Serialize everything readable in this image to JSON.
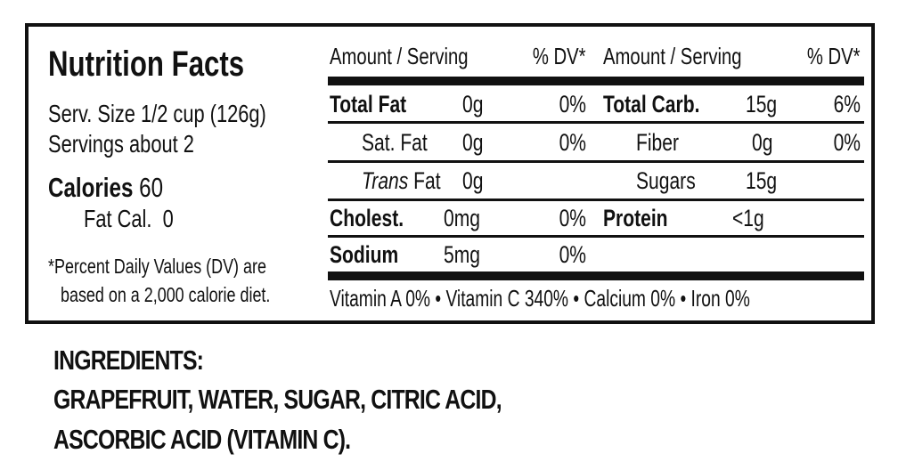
{
  "label": {
    "title": "Nutrition Facts",
    "serving_size": "Serv. Size 1/2 cup (126g)",
    "servings": "Servings about 2",
    "calories_label": "Calories",
    "calories_value": "60",
    "fat_cal_label": "Fat Cal.",
    "fat_cal_value": "0",
    "footnote_line1": "*Percent Daily Values (DV) are",
    "footnote_line2": "based on a 2,000 calorie diet.",
    "header": {
      "amount_left": "Amount / Serving",
      "dv_left": "% DV*",
      "amount_right": "Amount / Serving",
      "dv_right": "% DV*"
    },
    "left_rows": [
      {
        "name": "Total Fat",
        "amount": "0g",
        "dv": "0%"
      },
      {
        "name": "Sat. Fat",
        "amount": "0g",
        "dv": "0%"
      },
      {
        "name_italic": "Trans",
        "name_rest": "Fat",
        "amount": "0g",
        "dv": ""
      },
      {
        "name": "Cholest.",
        "amount": "0mg",
        "dv": "0%"
      },
      {
        "name": "Sodium",
        "amount": "5mg",
        "dv": "0%"
      }
    ],
    "right_rows": [
      {
        "name": "Total Carb.",
        "amount": "15g",
        "dv": "6%"
      },
      {
        "name": "Fiber",
        "amount": "0g",
        "dv": "0%"
      },
      {
        "name": "Sugars",
        "amount": "15g",
        "dv": ""
      },
      {
        "name": "Protein",
        "amount": "<1g",
        "dv": ""
      }
    ],
    "vitamins": "Vitamin A 0% • Vitamin C 340% • Calcium 0% • Iron 0%"
  },
  "ingredients": {
    "heading": "INGREDIENTS:",
    "line1": "GRAPEFRUIT, WATER, SUGAR, CITRIC ACID,",
    "line2": "ASCORBIC ACID (VITAMIN C)."
  }
}
